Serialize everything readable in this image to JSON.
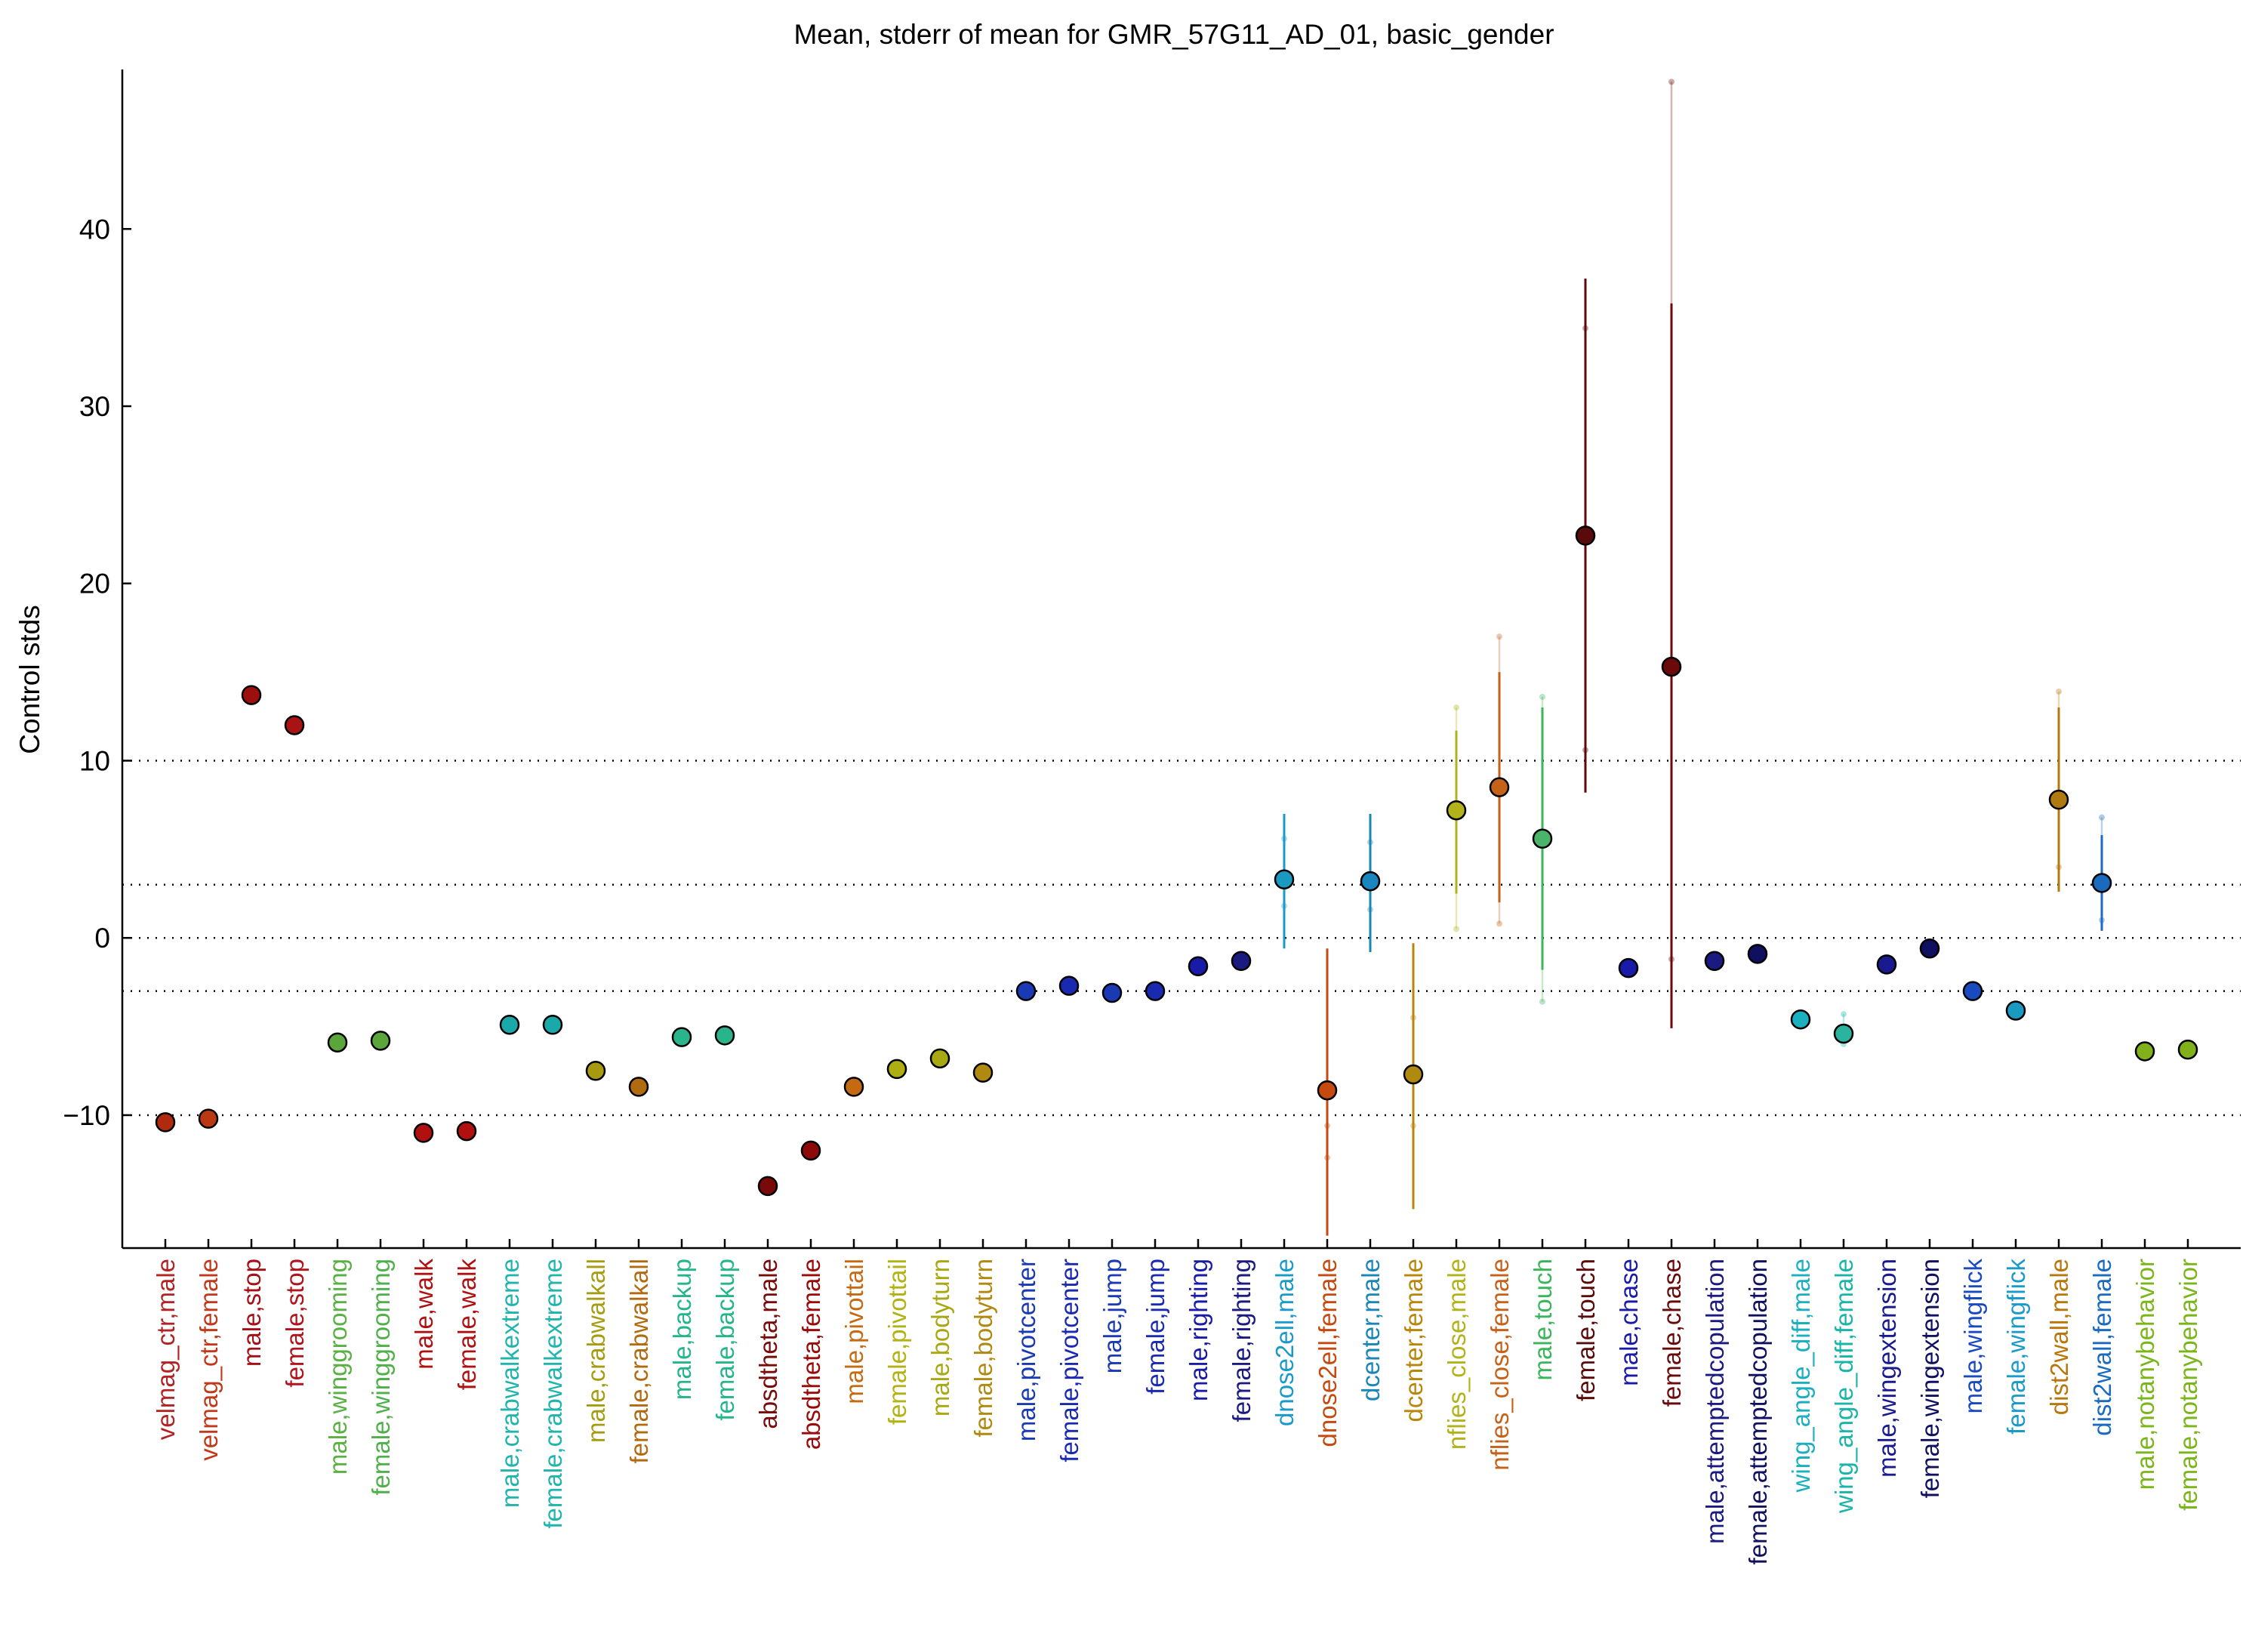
{
  "chart_data": {
    "type": "scatter",
    "title": "Mean, stderr of mean for GMR_57G11_AD_01, basic_gender",
    "ylabel": "Control stds",
    "xlabel": "",
    "ylim": [
      -17.5,
      49
    ],
    "yticks": [
      -10,
      0,
      10,
      20,
      30,
      40
    ],
    "ytick_labels": [
      "−10",
      "0",
      "10",
      "20",
      "30",
      "40"
    ],
    "reference_lines": [
      -10,
      -3,
      0,
      3,
      10
    ],
    "grid": false,
    "legend": "none",
    "points": [
      {
        "label": "velmag_ctr,male",
        "mean": -10.4,
        "color": "#b22222",
        "fill": "#b02a10"
      },
      {
        "label": "velmag_ctr,female",
        "mean": -10.2,
        "color": "#c0391a",
        "fill": "#b93a12"
      },
      {
        "label": "male,stop",
        "mean": 13.7,
        "color": "#a50f15",
        "fill": "#9e0e0e"
      },
      {
        "label": "female,stop",
        "mean": 12.0,
        "color": "#b0141c",
        "fill": "#a81414"
      },
      {
        "label": "male,winggrooming",
        "mean": -5.9,
        "color": "#59b043",
        "fill": "#5aa63a"
      },
      {
        "label": "female,winggrooming",
        "mean": -5.8,
        "color": "#4fb04a",
        "fill": "#5aa63a"
      },
      {
        "label": "male,walk",
        "mean": -11.0,
        "color": "#b01010",
        "fill": "#b01010"
      },
      {
        "label": "female,walk",
        "mean": -10.9,
        "color": "#b01010",
        "fill": "#b01010"
      },
      {
        "label": "male,crabwalkextreme",
        "mean": -4.9,
        "color": "#1fb5ad",
        "fill": "#1aa8a8"
      },
      {
        "label": "female,crabwalkextreme",
        "mean": -4.9,
        "color": "#1fb5ad",
        "fill": "#1aa8a8"
      },
      {
        "label": "male,crabwalkall",
        "mean": -7.5,
        "color": "#a69c10",
        "fill": "#a89a10"
      },
      {
        "label": "female,crabwalkall",
        "mean": -8.4,
        "color": "#b26a10",
        "fill": "#b06a10"
      },
      {
        "label": "male,backup",
        "mean": -5.6,
        "color": "#24b58a",
        "fill": "#2ab48c"
      },
      {
        "label": "female,backup",
        "mean": -5.5,
        "color": "#24b58a",
        "fill": "#2ab48c"
      },
      {
        "label": "absdtheta,male",
        "mean": -14.0,
        "color": "#7a0a0a",
        "fill": "#7a0a0a"
      },
      {
        "label": "absdtheta,female",
        "mean": -12.0,
        "color": "#9a0a0a",
        "fill": "#8c0a0a"
      },
      {
        "label": "male,pivottail",
        "mean": -8.4,
        "color": "#c46a12",
        "fill": "#c46a12"
      },
      {
        "label": "female,pivottail",
        "mean": -7.4,
        "color": "#b2b212",
        "fill": "#aeae12"
      },
      {
        "label": "male,bodyturn",
        "mean": -6.8,
        "color": "#a8a812",
        "fill": "#a8a812"
      },
      {
        "label": "female,bodyturn",
        "mean": -7.6,
        "color": "#b08a10",
        "fill": "#b08a10"
      },
      {
        "label": "male,pivotcenter",
        "mean": -3.0,
        "color": "#1a3ab5",
        "fill": "#1a3ab5"
      },
      {
        "label": "female,pivotcenter",
        "mean": -2.7,
        "color": "#1a2ab0",
        "fill": "#1a2ab0"
      },
      {
        "label": "male,jump",
        "mean": -3.1,
        "color": "#1a3ab5",
        "fill": "#1a3ab5"
      },
      {
        "label": "female,jump",
        "mean": -3.0,
        "color": "#1a2ab0",
        "fill": "#1a2ab0"
      },
      {
        "label": "male,righting",
        "mean": -1.6,
        "color": "#1a1aa8",
        "fill": "#1a1aa8"
      },
      {
        "label": "female,righting",
        "mean": -1.3,
        "color": "#1a1a80",
        "fill": "#1a1a80"
      },
      {
        "label": "dnose2ell,male",
        "mean": 3.3,
        "err_lo": -0.6,
        "err_hi": 7.0,
        "color": "#1a9ac8",
        "fill": "#1a9ac0"
      },
      {
        "label": "dnose2ell,female",
        "mean": -8.6,
        "err_lo": -16.8,
        "err_hi": -0.6,
        "color": "#c44a10",
        "fill": "#c44a10"
      },
      {
        "label": "dcenter,male",
        "mean": 3.2,
        "err_lo": -0.8,
        "err_hi": 7.0,
        "color": "#1a86b8",
        "fill": "#1a86c0"
      },
      {
        "label": "dcenter,female",
        "mean": -7.7,
        "err_lo": -15.3,
        "err_hi": -0.3,
        "color": "#b8860b",
        "fill": "#b08a10"
      },
      {
        "label": "nflies_close,male",
        "mean": 7.2,
        "err_lo": 2.5,
        "err_hi": 11.7,
        "color": "#b2b21a",
        "fill": "#b2b21a"
      },
      {
        "label": "nflies_close,female",
        "mean": 8.5,
        "err_lo": 2.0,
        "err_hi": 15.0,
        "color": "#c4621a",
        "fill": "#c4621a"
      },
      {
        "label": "male,touch",
        "mean": 5.6,
        "err_lo": -1.8,
        "err_hi": 13.0,
        "color": "#3ab55a",
        "fill": "#4ab56a"
      },
      {
        "label": "female,touch",
        "mean": 22.7,
        "err_lo": 8.2,
        "err_hi": 37.2,
        "color": "#5a0a0a",
        "fill": "#5a0a0a"
      },
      {
        "label": "male,chase",
        "mean": -1.7,
        "color": "#1a1aa8",
        "fill": "#1a1aa8"
      },
      {
        "label": "female,chase",
        "mean": 15.3,
        "err_lo": -5.1,
        "err_hi": 35.8,
        "color": "#6a0a0a",
        "fill": "#6a0a0a"
      },
      {
        "label": "male,attemptedcopulation",
        "mean": -1.3,
        "color": "#1a1a80",
        "fill": "#1a1a80"
      },
      {
        "label": "female,attemptedcopulation",
        "mean": -0.9,
        "color": "#101060",
        "fill": "#101060"
      },
      {
        "label": "wing_angle_diff,male",
        "mean": -4.6,
        "color": "#1ab0c0",
        "fill": "#1ab0c0"
      },
      {
        "label": "wing_angle_diff,female",
        "mean": -5.4,
        "color": "#1ab5a8",
        "fill": "#2ab4a0"
      },
      {
        "label": "male,wingextension",
        "mean": -1.5,
        "color": "#1a1a90",
        "fill": "#1a1a90"
      },
      {
        "label": "female,wingextension",
        "mean": -0.6,
        "color": "#101060",
        "fill": "#101060"
      },
      {
        "label": "male,wingflick",
        "mean": -3.0,
        "color": "#1a4ac0",
        "fill": "#1a4ac0"
      },
      {
        "label": "female,wingflick",
        "mean": -4.1,
        "color": "#1a9ac8",
        "fill": "#1a9ac0"
      },
      {
        "label": "dist2wall,male",
        "mean": 7.8,
        "err_lo": 2.6,
        "err_hi": 13.0,
        "color": "#b8760b",
        "fill": "#b07a10"
      },
      {
        "label": "dist2wall,female",
        "mean": 3.1,
        "err_lo": 0.4,
        "err_hi": 5.8,
        "color": "#1a6ac0",
        "fill": "#1a6ac0"
      },
      {
        "label": "male,notanybehavior",
        "mean": -6.4,
        "color": "#7ab51a",
        "fill": "#80b01a"
      },
      {
        "label": "female,notanybehavior",
        "mean": -6.3,
        "color": "#7ab51a",
        "fill": "#80b01a"
      }
    ],
    "faint_extents": [
      {
        "label": "dnose2ell,male",
        "lo": 1.8,
        "hi": 5.6
      },
      {
        "label": "dnose2ell,female",
        "lo": -12.4,
        "hi": -10.6
      },
      {
        "label": "dcenter,male",
        "lo": 1.6,
        "hi": 5.4
      },
      {
        "label": "dcenter,female",
        "lo": -10.6,
        "hi": -4.5
      },
      {
        "label": "nflies_close,male",
        "lo": 0.5,
        "hi": 13.0
      },
      {
        "label": "nflies_close,female",
        "lo": 0.8,
        "hi": 17.0
      },
      {
        "label": "male,touch",
        "lo": -3.6,
        "hi": 13.6
      },
      {
        "label": "female,touch",
        "lo": 10.6,
        "hi": 34.4
      },
      {
        "label": "female,chase",
        "lo": -1.2,
        "hi": 48.3
      },
      {
        "label": "wing_angle_diff,female",
        "lo": -6.0,
        "hi": -4.3
      },
      {
        "label": "dist2wall,male",
        "lo": 4.0,
        "hi": 13.9
      },
      {
        "label": "dist2wall,female",
        "lo": 1.0,
        "hi": 6.8
      }
    ]
  }
}
